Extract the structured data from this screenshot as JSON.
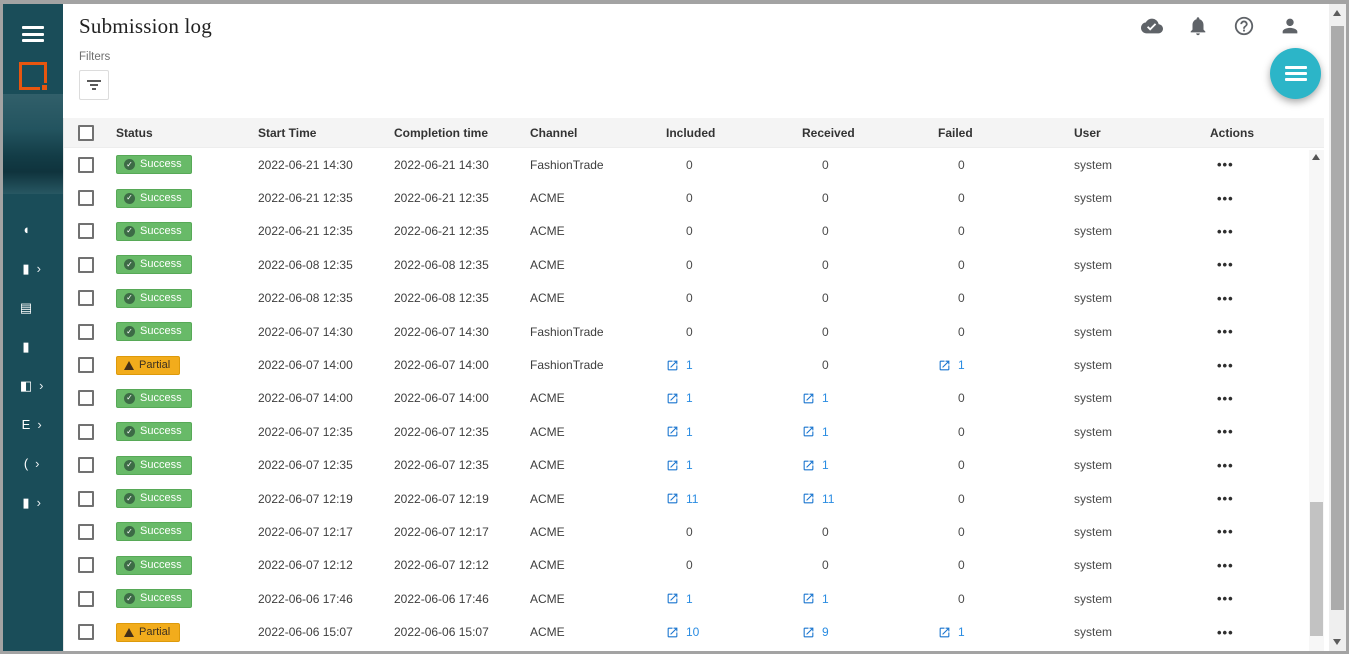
{
  "page_title": "Submission log",
  "topbar": {
    "icons": [
      {
        "name": "cloud-done-icon"
      },
      {
        "name": "notifications-bell-icon"
      },
      {
        "name": "help-icon"
      },
      {
        "name": "account-icon"
      }
    ]
  },
  "fab": {
    "icon": "menu-icon"
  },
  "filters": {
    "label": "Filters",
    "button_icon": "filter-icon"
  },
  "sidebar": {
    "menu_icon": "hamburger-icon",
    "logo": "orange-square-logo",
    "nav": [
      {
        "glyph": "◖",
        "chevron": false
      },
      {
        "glyph": "▮",
        "chevron": true
      },
      {
        "glyph": "▤",
        "chevron": false
      },
      {
        "glyph": "▮",
        "chevron": false
      },
      {
        "glyph": "◧",
        "chevron": true
      },
      {
        "glyph": "E",
        "chevron": true
      },
      {
        "glyph": "(",
        "chevron": true
      },
      {
        "glyph": "▮",
        "chevron": true
      }
    ]
  },
  "table": {
    "columns": [
      "Status",
      "Start Time",
      "Completion time",
      "Channel",
      "Included",
      "Received",
      "Failed",
      "User",
      "Actions"
    ],
    "actions_glyph": "•••",
    "rows": [
      {
        "status": "Success",
        "type": "success",
        "start": "2022-06-21 14:30",
        "completion": "2022-06-21 14:30",
        "channel": "FashionTrade",
        "included": {
          "value": "0",
          "link": false
        },
        "received": {
          "value": "0",
          "link": false
        },
        "failed": {
          "value": "0",
          "link": false
        },
        "user": "system"
      },
      {
        "status": "Success",
        "type": "success",
        "start": "2022-06-21 12:35",
        "completion": "2022-06-21 12:35",
        "channel": "ACME",
        "included": {
          "value": "0",
          "link": false
        },
        "received": {
          "value": "0",
          "link": false
        },
        "failed": {
          "value": "0",
          "link": false
        },
        "user": "system"
      },
      {
        "status": "Success",
        "type": "success",
        "start": "2022-06-21 12:35",
        "completion": "2022-06-21 12:35",
        "channel": "ACME",
        "included": {
          "value": "0",
          "link": false
        },
        "received": {
          "value": "0",
          "link": false
        },
        "failed": {
          "value": "0",
          "link": false
        },
        "user": "system"
      },
      {
        "status": "Success",
        "type": "success",
        "start": "2022-06-08 12:35",
        "completion": "2022-06-08 12:35",
        "channel": "ACME",
        "included": {
          "value": "0",
          "link": false
        },
        "received": {
          "value": "0",
          "link": false
        },
        "failed": {
          "value": "0",
          "link": false
        },
        "user": "system"
      },
      {
        "status": "Success",
        "type": "success",
        "start": "2022-06-08 12:35",
        "completion": "2022-06-08 12:35",
        "channel": "ACME",
        "included": {
          "value": "0",
          "link": false
        },
        "received": {
          "value": "0",
          "link": false
        },
        "failed": {
          "value": "0",
          "link": false
        },
        "user": "system"
      },
      {
        "status": "Success",
        "type": "success",
        "start": "2022-06-07 14:30",
        "completion": "2022-06-07 14:30",
        "channel": "FashionTrade",
        "included": {
          "value": "0",
          "link": false
        },
        "received": {
          "value": "0",
          "link": false
        },
        "failed": {
          "value": "0",
          "link": false
        },
        "user": "system"
      },
      {
        "status": "Partial",
        "type": "partial",
        "start": "2022-06-07 14:00",
        "completion": "2022-06-07 14:00",
        "channel": "FashionTrade",
        "included": {
          "value": "1",
          "link": true
        },
        "received": {
          "value": "0",
          "link": false
        },
        "failed": {
          "value": "1",
          "link": true
        },
        "user": "system"
      },
      {
        "status": "Success",
        "type": "success",
        "start": "2022-06-07 14:00",
        "completion": "2022-06-07 14:00",
        "channel": "ACME",
        "included": {
          "value": "1",
          "link": true
        },
        "received": {
          "value": "1",
          "link": true
        },
        "failed": {
          "value": "0",
          "link": false
        },
        "user": "system"
      },
      {
        "status": "Success",
        "type": "success",
        "start": "2022-06-07 12:35",
        "completion": "2022-06-07 12:35",
        "channel": "ACME",
        "included": {
          "value": "1",
          "link": true
        },
        "received": {
          "value": "1",
          "link": true
        },
        "failed": {
          "value": "0",
          "link": false
        },
        "user": "system"
      },
      {
        "status": "Success",
        "type": "success",
        "start": "2022-06-07 12:35",
        "completion": "2022-06-07 12:35",
        "channel": "ACME",
        "included": {
          "value": "1",
          "link": true
        },
        "received": {
          "value": "1",
          "link": true
        },
        "failed": {
          "value": "0",
          "link": false
        },
        "user": "system"
      },
      {
        "status": "Success",
        "type": "success",
        "start": "2022-06-07 12:19",
        "completion": "2022-06-07 12:19",
        "channel": "ACME",
        "included": {
          "value": "11",
          "link": true
        },
        "received": {
          "value": "11",
          "link": true
        },
        "failed": {
          "value": "0",
          "link": false
        },
        "user": "system"
      },
      {
        "status": "Success",
        "type": "success",
        "start": "2022-06-07 12:17",
        "completion": "2022-06-07 12:17",
        "channel": "ACME",
        "included": {
          "value": "0",
          "link": false
        },
        "received": {
          "value": "0",
          "link": false
        },
        "failed": {
          "value": "0",
          "link": false
        },
        "user": "system"
      },
      {
        "status": "Success",
        "type": "success",
        "start": "2022-06-07 12:12",
        "completion": "2022-06-07 12:12",
        "channel": "ACME",
        "included": {
          "value": "0",
          "link": false
        },
        "received": {
          "value": "0",
          "link": false
        },
        "failed": {
          "value": "0",
          "link": false
        },
        "user": "system"
      },
      {
        "status": "Success",
        "type": "success",
        "start": "2022-06-06 17:46",
        "completion": "2022-06-06 17:46",
        "channel": "ACME",
        "included": {
          "value": "1",
          "link": true
        },
        "received": {
          "value": "1",
          "link": true
        },
        "failed": {
          "value": "0",
          "link": false
        },
        "user": "system"
      },
      {
        "status": "Partial",
        "type": "partial",
        "start": "2022-06-06 15:07",
        "completion": "2022-06-06 15:07",
        "channel": "ACME",
        "included": {
          "value": "10",
          "link": true
        },
        "received": {
          "value": "9",
          "link": true
        },
        "failed": {
          "value": "1",
          "link": true
        },
        "user": "system"
      }
    ]
  },
  "colors": {
    "sidebar": "#1a4d59",
    "accent_fab": "#2cb5c8",
    "logo_orange": "#e8560f",
    "success_badge": "#68ba68",
    "partial_badge": "#f2ac1c",
    "link_blue": "#1a75cf"
  }
}
